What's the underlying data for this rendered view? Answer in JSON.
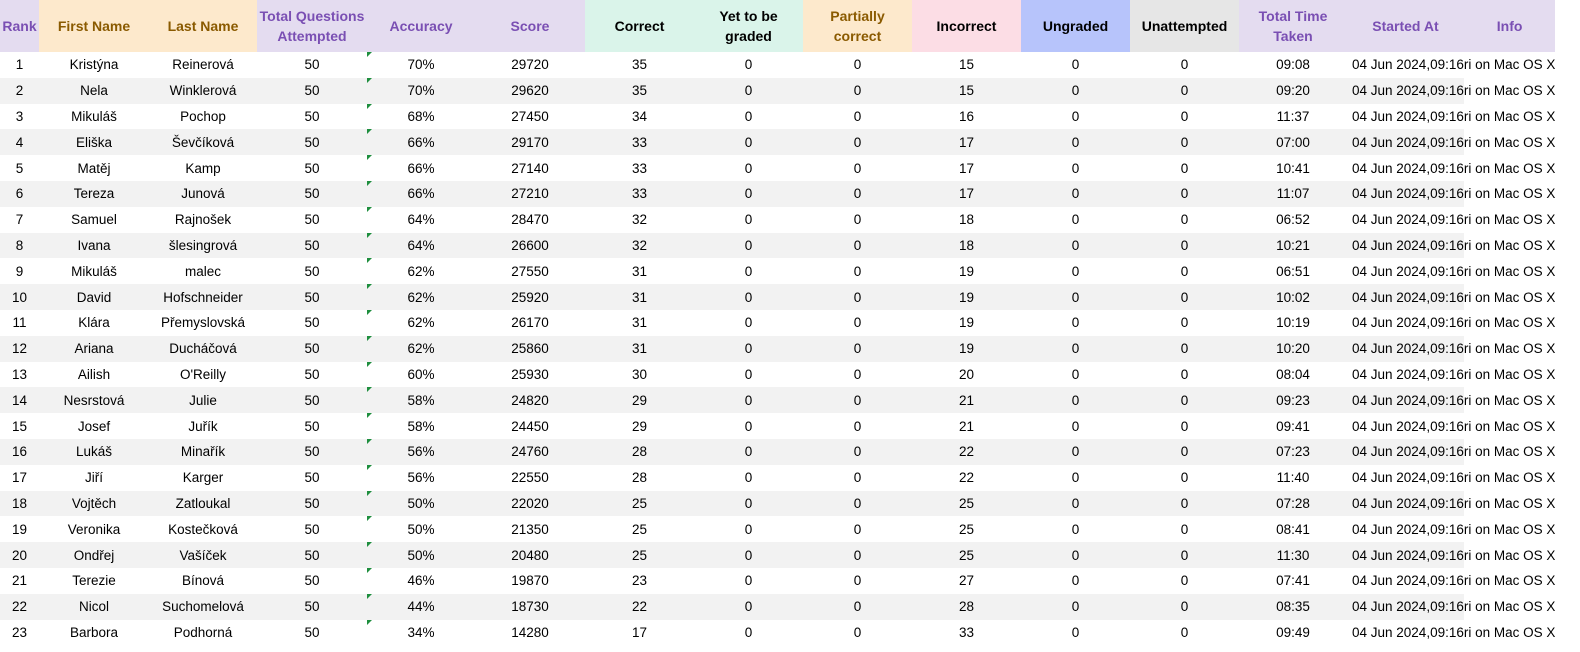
{
  "columns": [
    {
      "key": "rank",
      "label": "Rank",
      "bg": "#e4dcf0",
      "color": "#7a4fb3",
      "width": 39
    },
    {
      "key": "first",
      "label": "First Name",
      "bg": "#fde9cc",
      "color": "#8a5a00",
      "width": 110
    },
    {
      "key": "last",
      "label": "Last Name",
      "bg": "#fde9cc",
      "color": "#8a5a00",
      "width": 108
    },
    {
      "key": "total",
      "label": "Total Questions Attempted",
      "bg": "#e4dcf0",
      "color": "#7a4fb3",
      "width": 110
    },
    {
      "key": "accuracy",
      "label": "Accuracy",
      "bg": "#e4dcf0",
      "color": "#7a4fb3",
      "width": 108
    },
    {
      "key": "score",
      "label": "Score",
      "bg": "#e4dcf0",
      "color": "#7a4fb3",
      "width": 110
    },
    {
      "key": "correct",
      "label": "Correct",
      "bg": "#daf4ea",
      "color": "#000000",
      "width": 109
    },
    {
      "key": "ytbg",
      "label": "Yet to be graded",
      "bg": "#daf4ea",
      "color": "#000000",
      "width": 109
    },
    {
      "key": "partial",
      "label": "Partially correct",
      "bg": "#fde9cc",
      "color": "#8a5a00",
      "width": 109
    },
    {
      "key": "incorrect",
      "label": "Incorrect",
      "bg": "#fcdde5",
      "color": "#000000",
      "width": 109
    },
    {
      "key": "ungraded",
      "label": "Ungraded",
      "bg": "#b7c4fb",
      "color": "#000000",
      "width": 109
    },
    {
      "key": "unattempted",
      "label": "Unattempted",
      "bg": "#e6e6e6",
      "color": "#000000",
      "width": 109
    },
    {
      "key": "time",
      "label": "Total Time Taken",
      "bg": "#e4dcf0",
      "color": "#7a4fb3",
      "width": 108
    },
    {
      "key": "started",
      "label": "Started At",
      "bg": "#e4dcf0",
      "color": "#7a4fb3",
      "width": 110
    },
    {
      "key": "info",
      "label": "Info",
      "bg": "#e4dcf0",
      "color": "#7a4fb3",
      "width": 63
    }
  ],
  "rows": [
    {
      "rank": "1",
      "first": "Kristýna",
      "last": "Reinerová",
      "total": "50",
      "accuracy": "70%",
      "score": "29720",
      "correct": "35",
      "ytbg": "0",
      "partial": "0",
      "incorrect": "15",
      "ungraded": "0",
      "unattempted": "0",
      "time": "09:08",
      "started": "04 Jun 2024,09:16",
      "info": "ri on Mac OS X"
    },
    {
      "rank": "2",
      "first": "Nela",
      "last": "Winklerová",
      "total": "50",
      "accuracy": "70%",
      "score": "29620",
      "correct": "35",
      "ytbg": "0",
      "partial": "0",
      "incorrect": "15",
      "ungraded": "0",
      "unattempted": "0",
      "time": "09:20",
      "started": "04 Jun 2024,09:16",
      "info": "ri on Mac OS X"
    },
    {
      "rank": "3",
      "first": "Mikuláš",
      "last": "Pochop",
      "total": "50",
      "accuracy": "68%",
      "score": "27450",
      "correct": "34",
      "ytbg": "0",
      "partial": "0",
      "incorrect": "16",
      "ungraded": "0",
      "unattempted": "0",
      "time": "11:37",
      "started": "04 Jun 2024,09:16",
      "info": "ri on Mac OS X"
    },
    {
      "rank": "4",
      "first": "Eliška",
      "last": "Ševčíková",
      "total": "50",
      "accuracy": "66%",
      "score": "29170",
      "correct": "33",
      "ytbg": "0",
      "partial": "0",
      "incorrect": "17",
      "ungraded": "0",
      "unattempted": "0",
      "time": "07:00",
      "started": "04 Jun 2024,09:16",
      "info": "ri on Mac OS X"
    },
    {
      "rank": "5",
      "first": "Matěj",
      "last": "Kamp",
      "total": "50",
      "accuracy": "66%",
      "score": "27140",
      "correct": "33",
      "ytbg": "0",
      "partial": "0",
      "incorrect": "17",
      "ungraded": "0",
      "unattempted": "0",
      "time": "10:41",
      "started": "04 Jun 2024,09:16",
      "info": "ri on Mac OS X"
    },
    {
      "rank": "6",
      "first": "Tereza",
      "last": "Junová",
      "total": "50",
      "accuracy": "66%",
      "score": "27210",
      "correct": "33",
      "ytbg": "0",
      "partial": "0",
      "incorrect": "17",
      "ungraded": "0",
      "unattempted": "0",
      "time": "11:07",
      "started": "04 Jun 2024,09:16",
      "info": "ri on Mac OS X"
    },
    {
      "rank": "7",
      "first": "Samuel",
      "last": "Rajnošek",
      "total": "50",
      "accuracy": "64%",
      "score": "28470",
      "correct": "32",
      "ytbg": "0",
      "partial": "0",
      "incorrect": "18",
      "ungraded": "0",
      "unattempted": "0",
      "time": "06:52",
      "started": "04 Jun 2024,09:16",
      "info": "ri on Mac OS X"
    },
    {
      "rank": "8",
      "first": "Ivana",
      "last": "šlesingrová",
      "total": "50",
      "accuracy": "64%",
      "score": "26600",
      "correct": "32",
      "ytbg": "0",
      "partial": "0",
      "incorrect": "18",
      "ungraded": "0",
      "unattempted": "0",
      "time": "10:21",
      "started": "04 Jun 2024,09:16",
      "info": "ri on Mac OS X"
    },
    {
      "rank": "9",
      "first": "Mikuláš",
      "last": "malec",
      "total": "50",
      "accuracy": "62%",
      "score": "27550",
      "correct": "31",
      "ytbg": "0",
      "partial": "0",
      "incorrect": "19",
      "ungraded": "0",
      "unattempted": "0",
      "time": "06:51",
      "started": "04 Jun 2024,09:16",
      "info": "ri on Mac OS X"
    },
    {
      "rank": "10",
      "first": "David",
      "last": "Hofschneider",
      "total": "50",
      "accuracy": "62%",
      "score": "25920",
      "correct": "31",
      "ytbg": "0",
      "partial": "0",
      "incorrect": "19",
      "ungraded": "0",
      "unattempted": "0",
      "time": "10:02",
      "started": "04 Jun 2024,09:16",
      "info": "ri on Mac OS X"
    },
    {
      "rank": "11",
      "first": "Klára",
      "last": "Přemyslovská",
      "total": "50",
      "accuracy": "62%",
      "score": "26170",
      "correct": "31",
      "ytbg": "0",
      "partial": "0",
      "incorrect": "19",
      "ungraded": "0",
      "unattempted": "0",
      "time": "10:19",
      "started": "04 Jun 2024,09:16",
      "info": "ri on Mac OS X"
    },
    {
      "rank": "12",
      "first": "Ariana",
      "last": "Ducháčová",
      "total": "50",
      "accuracy": "62%",
      "score": "25860",
      "correct": "31",
      "ytbg": "0",
      "partial": "0",
      "incorrect": "19",
      "ungraded": "0",
      "unattempted": "0",
      "time": "10:20",
      "started": "04 Jun 2024,09:16",
      "info": "ri on Mac OS X"
    },
    {
      "rank": "13",
      "first": "Ailish",
      "last": "O'Reilly",
      "total": "50",
      "accuracy": "60%",
      "score": "25930",
      "correct": "30",
      "ytbg": "0",
      "partial": "0",
      "incorrect": "20",
      "ungraded": "0",
      "unattempted": "0",
      "time": "08:04",
      "started": "04 Jun 2024,09:16",
      "info": "ri on Mac OS X"
    },
    {
      "rank": "14",
      "first": "Nesrstová",
      "last": "Julie",
      "total": "50",
      "accuracy": "58%",
      "score": "24820",
      "correct": "29",
      "ytbg": "0",
      "partial": "0",
      "incorrect": "21",
      "ungraded": "0",
      "unattempted": "0",
      "time": "09:23",
      "started": "04 Jun 2024,09:16",
      "info": "ri on Mac OS X"
    },
    {
      "rank": "15",
      "first": "Josef",
      "last": "Juřík",
      "total": "50",
      "accuracy": "58%",
      "score": "24450",
      "correct": "29",
      "ytbg": "0",
      "partial": "0",
      "incorrect": "21",
      "ungraded": "0",
      "unattempted": "0",
      "time": "09:41",
      "started": "04 Jun 2024,09:16",
      "info": "ri on Mac OS X"
    },
    {
      "rank": "16",
      "first": "Lukáš",
      "last": "Minařík",
      "total": "50",
      "accuracy": "56%",
      "score": "24760",
      "correct": "28",
      "ytbg": "0",
      "partial": "0",
      "incorrect": "22",
      "ungraded": "0",
      "unattempted": "0",
      "time": "07:23",
      "started": "04 Jun 2024,09:16",
      "info": "ri on Mac OS X"
    },
    {
      "rank": "17",
      "first": "Jiří",
      "last": "Karger",
      "total": "50",
      "accuracy": "56%",
      "score": "22550",
      "correct": "28",
      "ytbg": "0",
      "partial": "0",
      "incorrect": "22",
      "ungraded": "0",
      "unattempted": "0",
      "time": "11:40",
      "started": "04 Jun 2024,09:16",
      "info": "ri on Mac OS X"
    },
    {
      "rank": "18",
      "first": "Vojtěch",
      "last": "Zatloukal",
      "total": "50",
      "accuracy": "50%",
      "score": "22020",
      "correct": "25",
      "ytbg": "0",
      "partial": "0",
      "incorrect": "25",
      "ungraded": "0",
      "unattempted": "0",
      "time": "07:28",
      "started": "04 Jun 2024,09:16",
      "info": "ri on Mac OS X"
    },
    {
      "rank": "19",
      "first": "Veronika",
      "last": "Kostečková",
      "total": "50",
      "accuracy": "50%",
      "score": "21350",
      "correct": "25",
      "ytbg": "0",
      "partial": "0",
      "incorrect": "25",
      "ungraded": "0",
      "unattempted": "0",
      "time": "08:41",
      "started": "04 Jun 2024,09:16",
      "info": "ri on Mac OS X"
    },
    {
      "rank": "20",
      "first": "Ondřej",
      "last": "Vašíček",
      "total": "50",
      "accuracy": "50%",
      "score": "20480",
      "correct": "25",
      "ytbg": "0",
      "partial": "0",
      "incorrect": "25",
      "ungraded": "0",
      "unattempted": "0",
      "time": "11:30",
      "started": "04 Jun 2024,09:16",
      "info": "ri on Mac OS X"
    },
    {
      "rank": "21",
      "first": "Terezie",
      "last": "Bínová",
      "total": "50",
      "accuracy": "46%",
      "score": "19870",
      "correct": "23",
      "ytbg": "0",
      "partial": "0",
      "incorrect": "27",
      "ungraded": "0",
      "unattempted": "0",
      "time": "07:41",
      "started": "04 Jun 2024,09:16",
      "info": "ri on Mac OS X"
    },
    {
      "rank": "22",
      "first": "Nicol",
      "last": "Suchomelová",
      "total": "50",
      "accuracy": "44%",
      "score": "18730",
      "correct": "22",
      "ytbg": "0",
      "partial": "0",
      "incorrect": "28",
      "ungraded": "0",
      "unattempted": "0",
      "time": "08:35",
      "started": "04 Jun 2024,09:16",
      "info": "ri on Mac OS X"
    },
    {
      "rank": "23",
      "first": "Barbora",
      "last": "Podhorná",
      "total": "50",
      "accuracy": "34%",
      "score": "14280",
      "correct": "17",
      "ytbg": "0",
      "partial": "0",
      "incorrect": "33",
      "ungraded": "0",
      "unattempted": "0",
      "time": "09:49",
      "started": "04 Jun 2024,09:16",
      "info": "ri on Mac OS X"
    }
  ]
}
